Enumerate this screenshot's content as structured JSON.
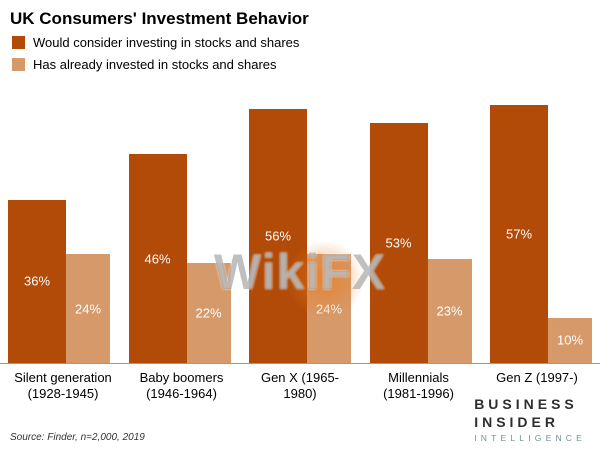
{
  "title": "UK Consumers' Investment Behavior",
  "watermark": "WikiFX",
  "source": "Source: Finder, n=2,000, 2019",
  "branding": {
    "line1": "BUSINESS",
    "line2": "INSIDER",
    "line3": "INTELLIGENCE"
  },
  "colors": {
    "consider": "#b24a08",
    "already": "#d6996a"
  },
  "chart_data": {
    "type": "bar",
    "title": "UK Consumers' Investment Behavior",
    "xlabel": "",
    "ylabel": "",
    "ylim": [
      0,
      60
    ],
    "grid": false,
    "legend_position": "top-left",
    "value_suffix": "%",
    "categories": [
      "Silent generation (1928-1945)",
      "Baby boomers (1946-1964)",
      "Gen X (1965-1980)",
      "Millennials (1981-1996)",
      "Gen Z (1997-)"
    ],
    "category_lines": [
      [
        "Silent generation",
        "(1928-1945)"
      ],
      [
        "Baby boomers",
        "(1946-1964)"
      ],
      [
        "Gen X (1965-1980)",
        ""
      ],
      [
        "Millennials",
        "(1981-1996)"
      ],
      [
        "Gen Z (1997-)",
        ""
      ]
    ],
    "series": [
      {
        "name": "Would consider investing in stocks and shares",
        "color": "#b24a08",
        "values": [
          36,
          46,
          56,
          53,
          57
        ]
      },
      {
        "name": "Has already invested in stocks and shares",
        "color": "#d6996a",
        "values": [
          24,
          22,
          24,
          23,
          10
        ]
      }
    ]
  }
}
